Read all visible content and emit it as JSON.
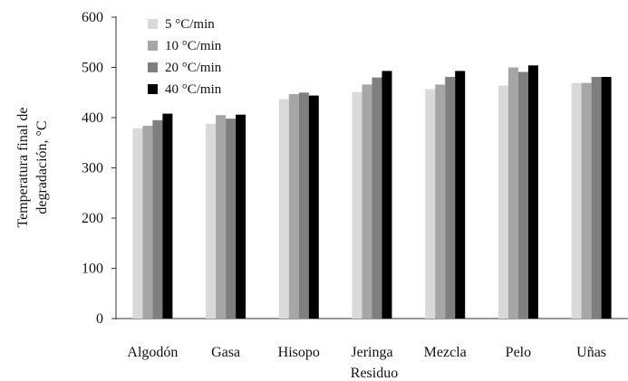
{
  "chart_data": {
    "type": "bar",
    "xlabel": "Residuo",
    "ylabel_lines": [
      "Temperatura final de",
      "degradación, °C"
    ],
    "categories": [
      "Algodón",
      "Gasa",
      "Hisopo",
      "Jeringa",
      "Mezcla",
      "Pelo",
      "Uñas"
    ],
    "series": [
      {
        "name": "5 °C/min",
        "values": [
          379,
          388,
          437,
          451,
          457,
          464,
          469
        ]
      },
      {
        "name": "10 °C/min",
        "values": [
          384,
          405,
          447,
          466,
          466,
          500,
          469
        ]
      },
      {
        "name": "20 °C/min",
        "values": [
          395,
          398,
          450,
          480,
          481,
          491,
          481
        ]
      },
      {
        "name": "40 °C/min",
        "values": [
          408,
          406,
          444,
          493,
          493,
          504,
          481
        ]
      }
    ],
    "ylim": [
      0,
      600
    ],
    "yticks": [
      0,
      100,
      200,
      300,
      400,
      500,
      600
    ],
    "grid": false,
    "legend_position": "top-left",
    "colors": [
      "#d9d9d9",
      "#a6a6a6",
      "#7f7f7f",
      "#000000"
    ]
  }
}
